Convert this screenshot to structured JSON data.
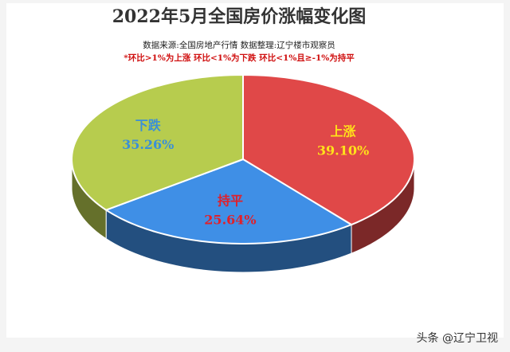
{
  "chart_data": {
    "type": "pie",
    "title": "2022年5月全国房价涨幅变化图",
    "subtitle": "数据来源:全国房地产行情 数据整理:辽宁楼市观察员",
    "note": "*环比>1%为上涨 环比<1%为下跌 环比<1%且≥-1%为持平",
    "categories": [
      "上涨",
      "持平",
      "下跌"
    ],
    "values": [
      39.1,
      25.64,
      35.26
    ],
    "value_labels": [
      "39.10%",
      "25.64%",
      "35.26%"
    ],
    "colors": [
      "#e04848",
      "#3f8fe6",
      "#b7cc4e"
    ],
    "label_colors": [
      "#ffe21a",
      "#e0202a",
      "#3a8fd8"
    ]
  },
  "watermark": "头条 @辽宁卫视"
}
